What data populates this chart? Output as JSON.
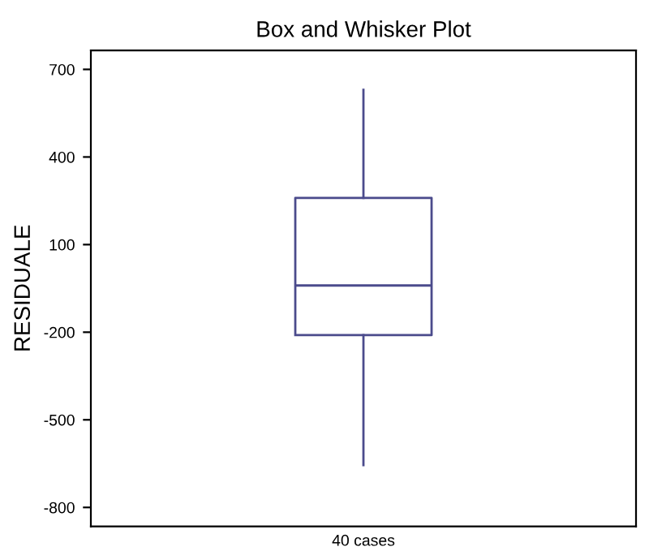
{
  "chart_data": {
    "type": "box",
    "title": "Box and Whisker Plot",
    "ylabel": "RESIDUALE",
    "categories": [
      "40 cases"
    ],
    "boxes": [
      {
        "low": -655,
        "q1": -210,
        "median": -40,
        "q3": 260,
        "high": 630
      }
    ],
    "color": "#4b4b8c",
    "ylim": [
      -865,
      765
    ],
    "yticks": [
      -800,
      -500,
      -200,
      100,
      400,
      700
    ],
    "grid": false
  }
}
